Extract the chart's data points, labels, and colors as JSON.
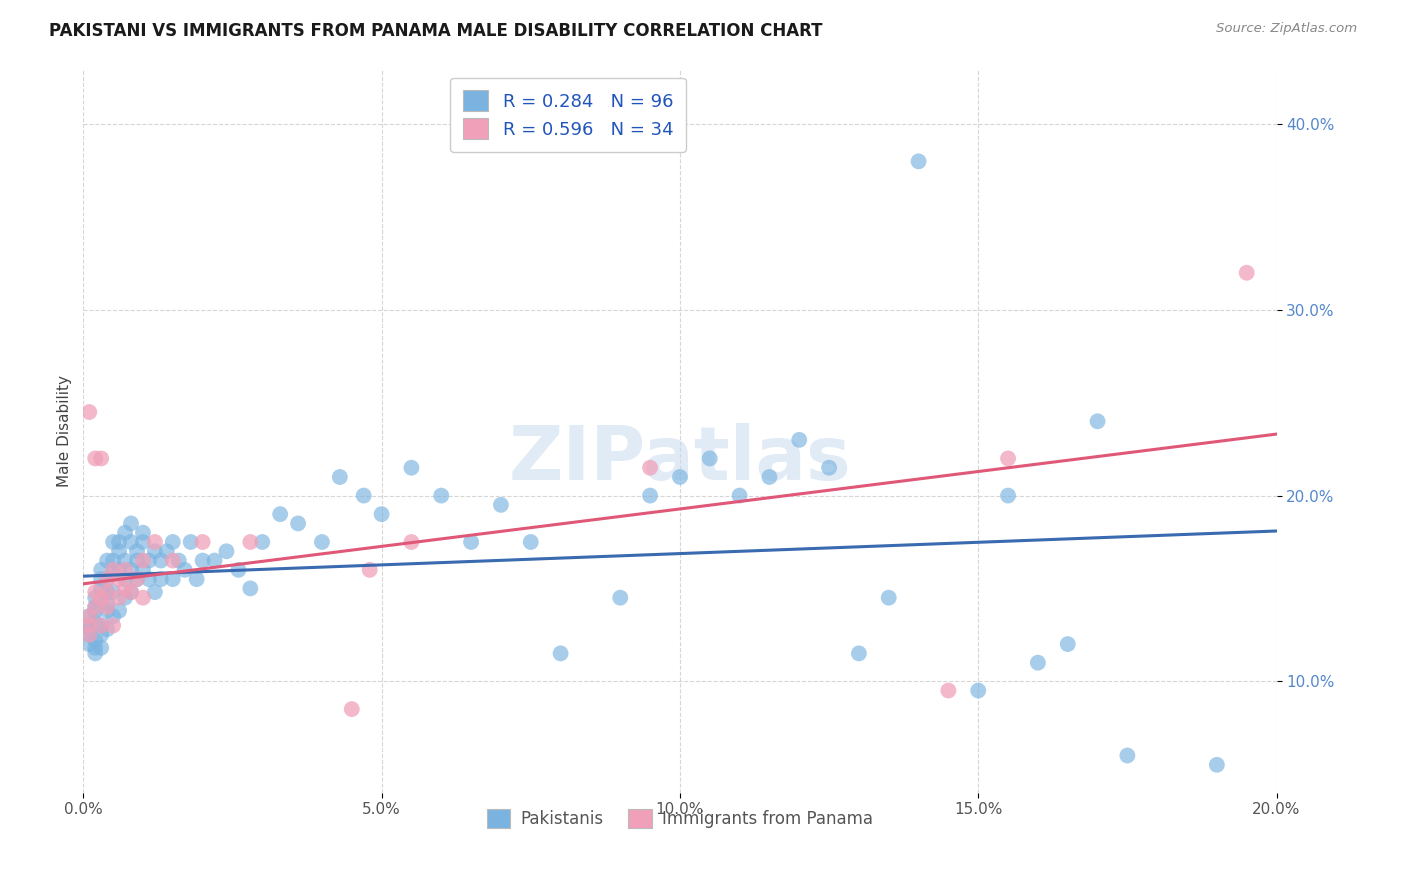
{
  "title": "PAKISTANI VS IMMIGRANTS FROM PANAMA MALE DISABILITY CORRELATION CHART",
  "source": "Source: ZipAtlas.com",
  "ylabel": "Male Disability",
  "xlim": [
    0.0,
    0.2
  ],
  "ylim": [
    0.04,
    0.43
  ],
  "legend_r1": "R = 0.284",
  "legend_n1": "N = 96",
  "legend_r2": "R = 0.596",
  "legend_n2": "N = 34",
  "color_blue": "#7ab3e0",
  "color_pink": "#f0a0b8",
  "line_blue": "#3a6ab0",
  "line_pink": "#e05878",
  "watermark": "ZIPatlas",
  "pakistanis_x": [
    0.001,
    0.001,
    0.001,
    0.001,
    0.001,
    0.002,
    0.002,
    0.002,
    0.002,
    0.002,
    0.002,
    0.002,
    0.003,
    0.003,
    0.003,
    0.003,
    0.003,
    0.003,
    0.004,
    0.004,
    0.004,
    0.004,
    0.004,
    0.004,
    0.005,
    0.005,
    0.005,
    0.005,
    0.005,
    0.006,
    0.006,
    0.006,
    0.006,
    0.007,
    0.007,
    0.007,
    0.007,
    0.008,
    0.008,
    0.008,
    0.008,
    0.009,
    0.009,
    0.009,
    0.01,
    0.01,
    0.01,
    0.011,
    0.011,
    0.012,
    0.012,
    0.013,
    0.013,
    0.014,
    0.015,
    0.015,
    0.016,
    0.017,
    0.018,
    0.019,
    0.02,
    0.022,
    0.024,
    0.026,
    0.028,
    0.03,
    0.033,
    0.036,
    0.04,
    0.043,
    0.047,
    0.05,
    0.055,
    0.06,
    0.065,
    0.07,
    0.075,
    0.08,
    0.09,
    0.095,
    0.1,
    0.105,
    0.11,
    0.115,
    0.12,
    0.125,
    0.13,
    0.135,
    0.14,
    0.15,
    0.155,
    0.16,
    0.165,
    0.17,
    0.175,
    0.19
  ],
  "pakistanis_y": [
    0.135,
    0.13,
    0.125,
    0.12,
    0.128,
    0.14,
    0.138,
    0.132,
    0.145,
    0.118,
    0.122,
    0.115,
    0.15,
    0.155,
    0.125,
    0.16,
    0.13,
    0.118,
    0.148,
    0.155,
    0.165,
    0.138,
    0.142,
    0.128,
    0.165,
    0.175,
    0.148,
    0.135,
    0.158,
    0.17,
    0.16,
    0.175,
    0.138,
    0.18,
    0.165,
    0.155,
    0.145,
    0.175,
    0.16,
    0.148,
    0.185,
    0.17,
    0.155,
    0.165,
    0.175,
    0.16,
    0.18,
    0.165,
    0.155,
    0.17,
    0.148,
    0.165,
    0.155,
    0.17,
    0.175,
    0.155,
    0.165,
    0.16,
    0.175,
    0.155,
    0.165,
    0.165,
    0.17,
    0.16,
    0.15,
    0.175,
    0.19,
    0.185,
    0.175,
    0.21,
    0.2,
    0.19,
    0.215,
    0.2,
    0.175,
    0.195,
    0.175,
    0.115,
    0.145,
    0.2,
    0.21,
    0.22,
    0.2,
    0.21,
    0.23,
    0.215,
    0.115,
    0.145,
    0.38,
    0.095,
    0.2,
    0.11,
    0.12,
    0.24,
    0.06,
    0.055
  ],
  "panama_x": [
    0.001,
    0.001,
    0.001,
    0.001,
    0.002,
    0.002,
    0.002,
    0.003,
    0.003,
    0.003,
    0.004,
    0.004,
    0.004,
    0.005,
    0.005,
    0.006,
    0.006,
    0.007,
    0.007,
    0.008,
    0.009,
    0.01,
    0.01,
    0.012,
    0.015,
    0.02,
    0.028,
    0.045,
    0.048,
    0.055,
    0.095,
    0.145,
    0.155,
    0.195
  ],
  "panama_y": [
    0.135,
    0.13,
    0.125,
    0.245,
    0.14,
    0.148,
    0.22,
    0.145,
    0.13,
    0.22,
    0.155,
    0.148,
    0.14,
    0.16,
    0.13,
    0.155,
    0.145,
    0.16,
    0.15,
    0.148,
    0.155,
    0.145,
    0.165,
    0.175,
    0.165,
    0.175,
    0.175,
    0.085,
    0.16,
    0.175,
    0.215,
    0.095,
    0.22,
    0.32
  ]
}
